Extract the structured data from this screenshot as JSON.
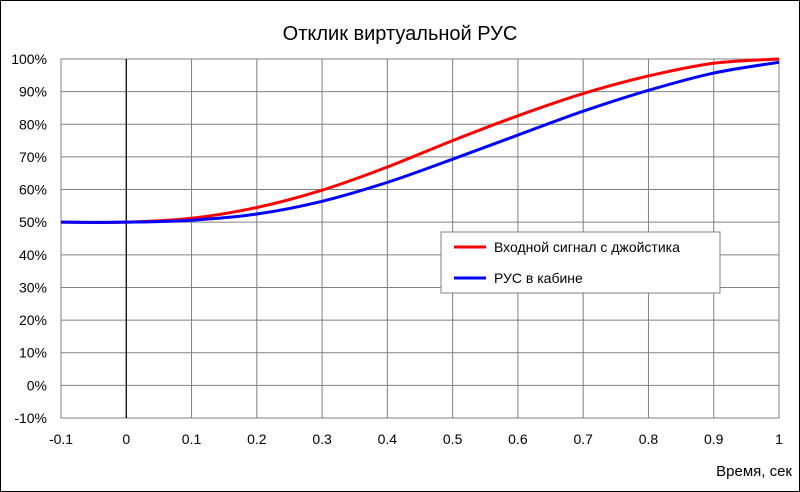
{
  "chart_data": {
    "type": "line",
    "title": "Отклик виртуальной РУС",
    "xlabel": "Время, сек",
    "ylabel": "",
    "xlim": [
      -0.1,
      1.0
    ],
    "ylim": [
      -10,
      100
    ],
    "x_ticks": [
      "-0.1",
      "0",
      "0.1",
      "0.2",
      "0.3",
      "0.4",
      "0.5",
      "0.6",
      "0.7",
      "0.8",
      "0.9",
      "1"
    ],
    "y_ticks": [
      "-10%",
      "0%",
      "10%",
      "20%",
      "30%",
      "40%",
      "50%",
      "60%",
      "70%",
      "80%",
      "90%",
      "100%"
    ],
    "grid": true,
    "legend_position": "right",
    "x": [
      -0.1,
      0.0,
      0.1,
      0.2,
      0.3,
      0.4,
      0.5,
      0.6,
      0.7,
      0.8,
      0.9,
      1.0
    ],
    "series": [
      {
        "name": "Входной сигнал с джойстика",
        "color": "#ff0000",
        "values": [
          50,
          50,
          51.2,
          54.5,
          59.8,
          66.9,
          75.0,
          82.6,
          89.4,
          94.8,
          98.7,
          100
        ]
      },
      {
        "name": "РУС в кабине",
        "color": "#0000ff",
        "values": [
          50,
          50,
          50.6,
          52.5,
          56.4,
          62.2,
          69.3,
          76.7,
          84.0,
          90.4,
          95.7,
          99.0
        ]
      }
    ]
  }
}
